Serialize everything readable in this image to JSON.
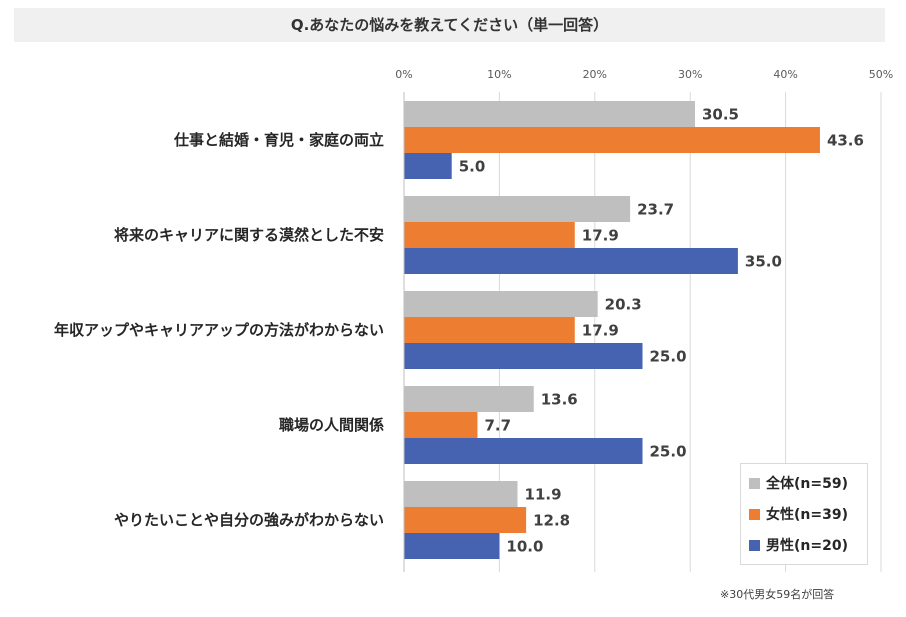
{
  "chart_data": {
    "type": "bar",
    "orientation": "horizontal",
    "title": "Q.あなたの悩みを教えてください（単一回答）",
    "categories": [
      "仕事と結婚・育児・家庭の両立",
      "将来のキャリアに関する漠然とした不安",
      "年収アップやキャリアアップの方法がわからない",
      "職場の人間関係",
      "やりたいことや自分の強みがわからない"
    ],
    "series": [
      {
        "name": "全体(n=59)",
        "color": "#bfbfbf",
        "values": [
          30.5,
          23.7,
          20.3,
          13.6,
          11.9
        ]
      },
      {
        "name": "女性(n=39)",
        "color": "#ed7d31",
        "values": [
          43.6,
          17.9,
          17.9,
          7.7,
          12.8
        ]
      },
      {
        "name": "男性(n=20)",
        "color": "#4563b0",
        "values": [
          5.0,
          35.0,
          25.0,
          25.0,
          10.0
        ]
      }
    ],
    "xlim": [
      0,
      50
    ],
    "xticks": [
      "0%",
      "10%",
      "20%",
      "30%",
      "40%",
      "50%"
    ],
    "grid": true,
    "legend_position": "bottom-right"
  },
  "footnote": "※30代男女59名が回答"
}
